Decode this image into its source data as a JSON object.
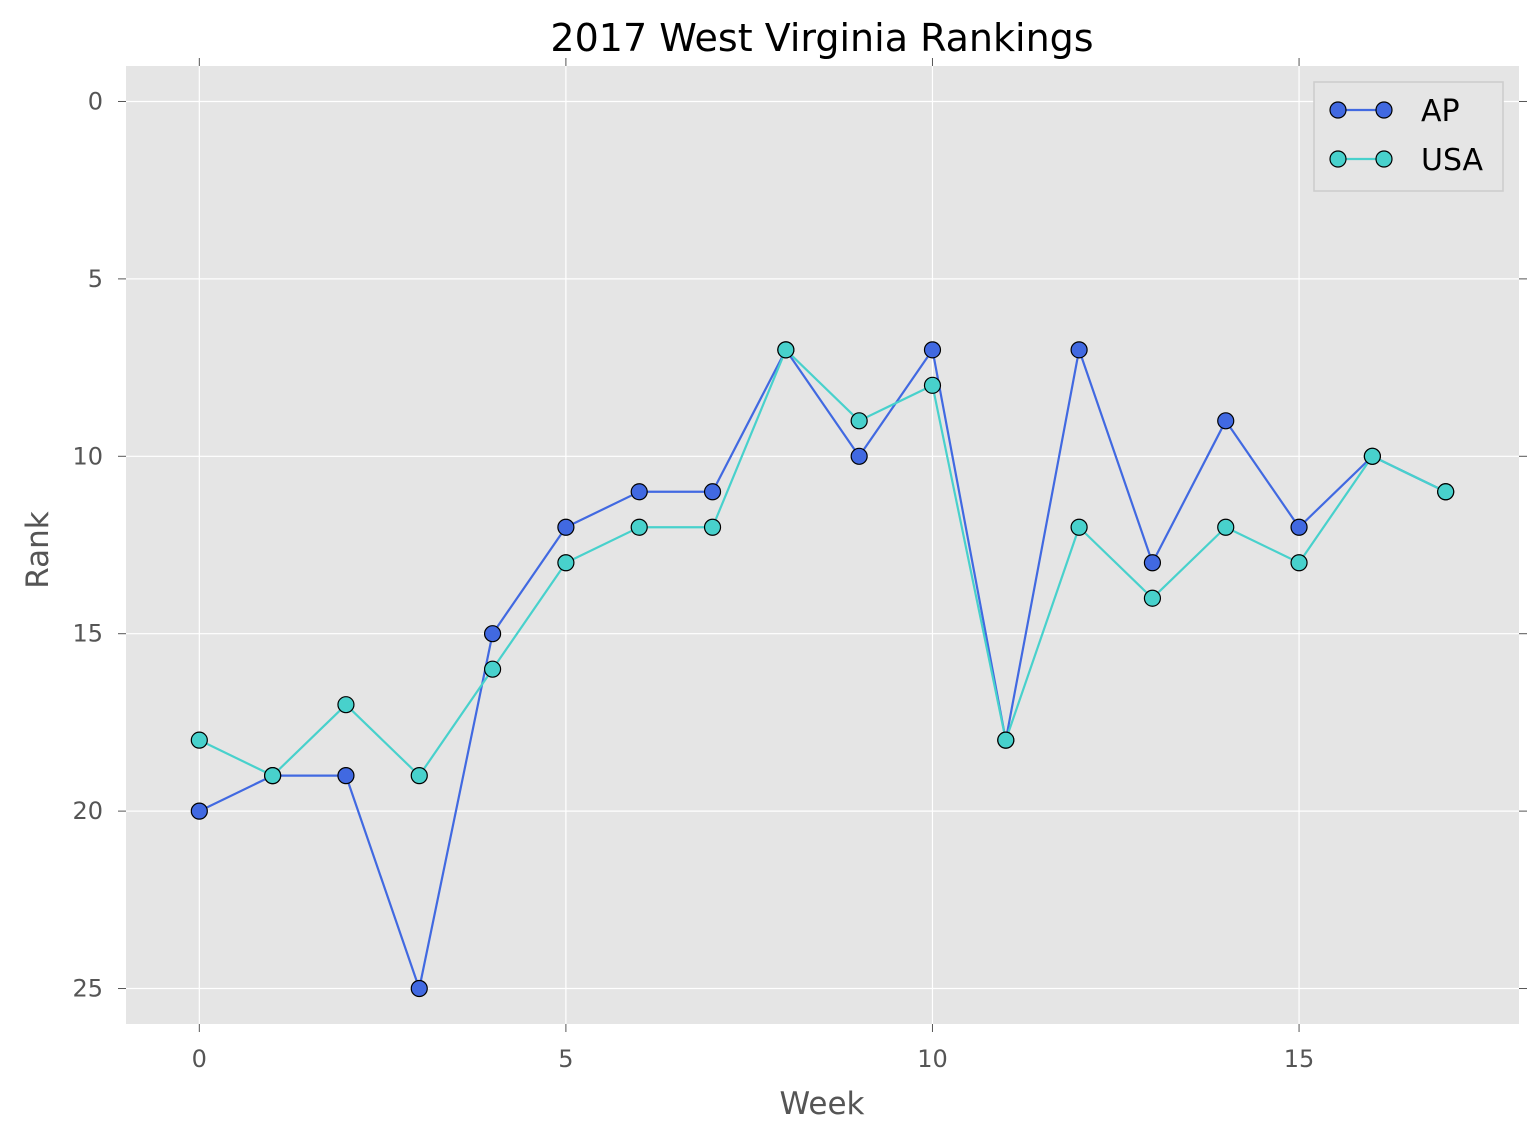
{
  "chart_data": {
    "type": "line",
    "title": "2017 West Virginia Rankings",
    "xlabel": "Week",
    "ylabel": "Rank",
    "x": [
      0,
      1,
      2,
      3,
      4,
      5,
      6,
      7,
      8,
      9,
      10,
      11,
      12,
      13,
      14,
      15,
      16,
      17
    ],
    "xlim": [
      -1,
      18
    ],
    "ylim": [
      26,
      -1
    ],
    "y_inverted": true,
    "xticks": [
      0,
      5,
      10,
      15
    ],
    "yticks": [
      0,
      5,
      10,
      15,
      20,
      25
    ],
    "grid": true,
    "legend_position": "top-right",
    "background": "#e5e5e5",
    "series": [
      {
        "name": "AP",
        "color": "#4169e1",
        "marker": "circle",
        "values": [
          20,
          19,
          19,
          25,
          15,
          12,
          11,
          11,
          7,
          10,
          7,
          18,
          7,
          13,
          9,
          12,
          10,
          11
        ]
      },
      {
        "name": "USA",
        "color": "#48d1cc",
        "marker": "circle",
        "values": [
          18,
          19,
          17,
          19,
          16,
          13,
          12,
          12,
          7,
          9,
          8,
          18,
          12,
          14,
          12,
          13,
          10,
          11
        ]
      }
    ]
  }
}
